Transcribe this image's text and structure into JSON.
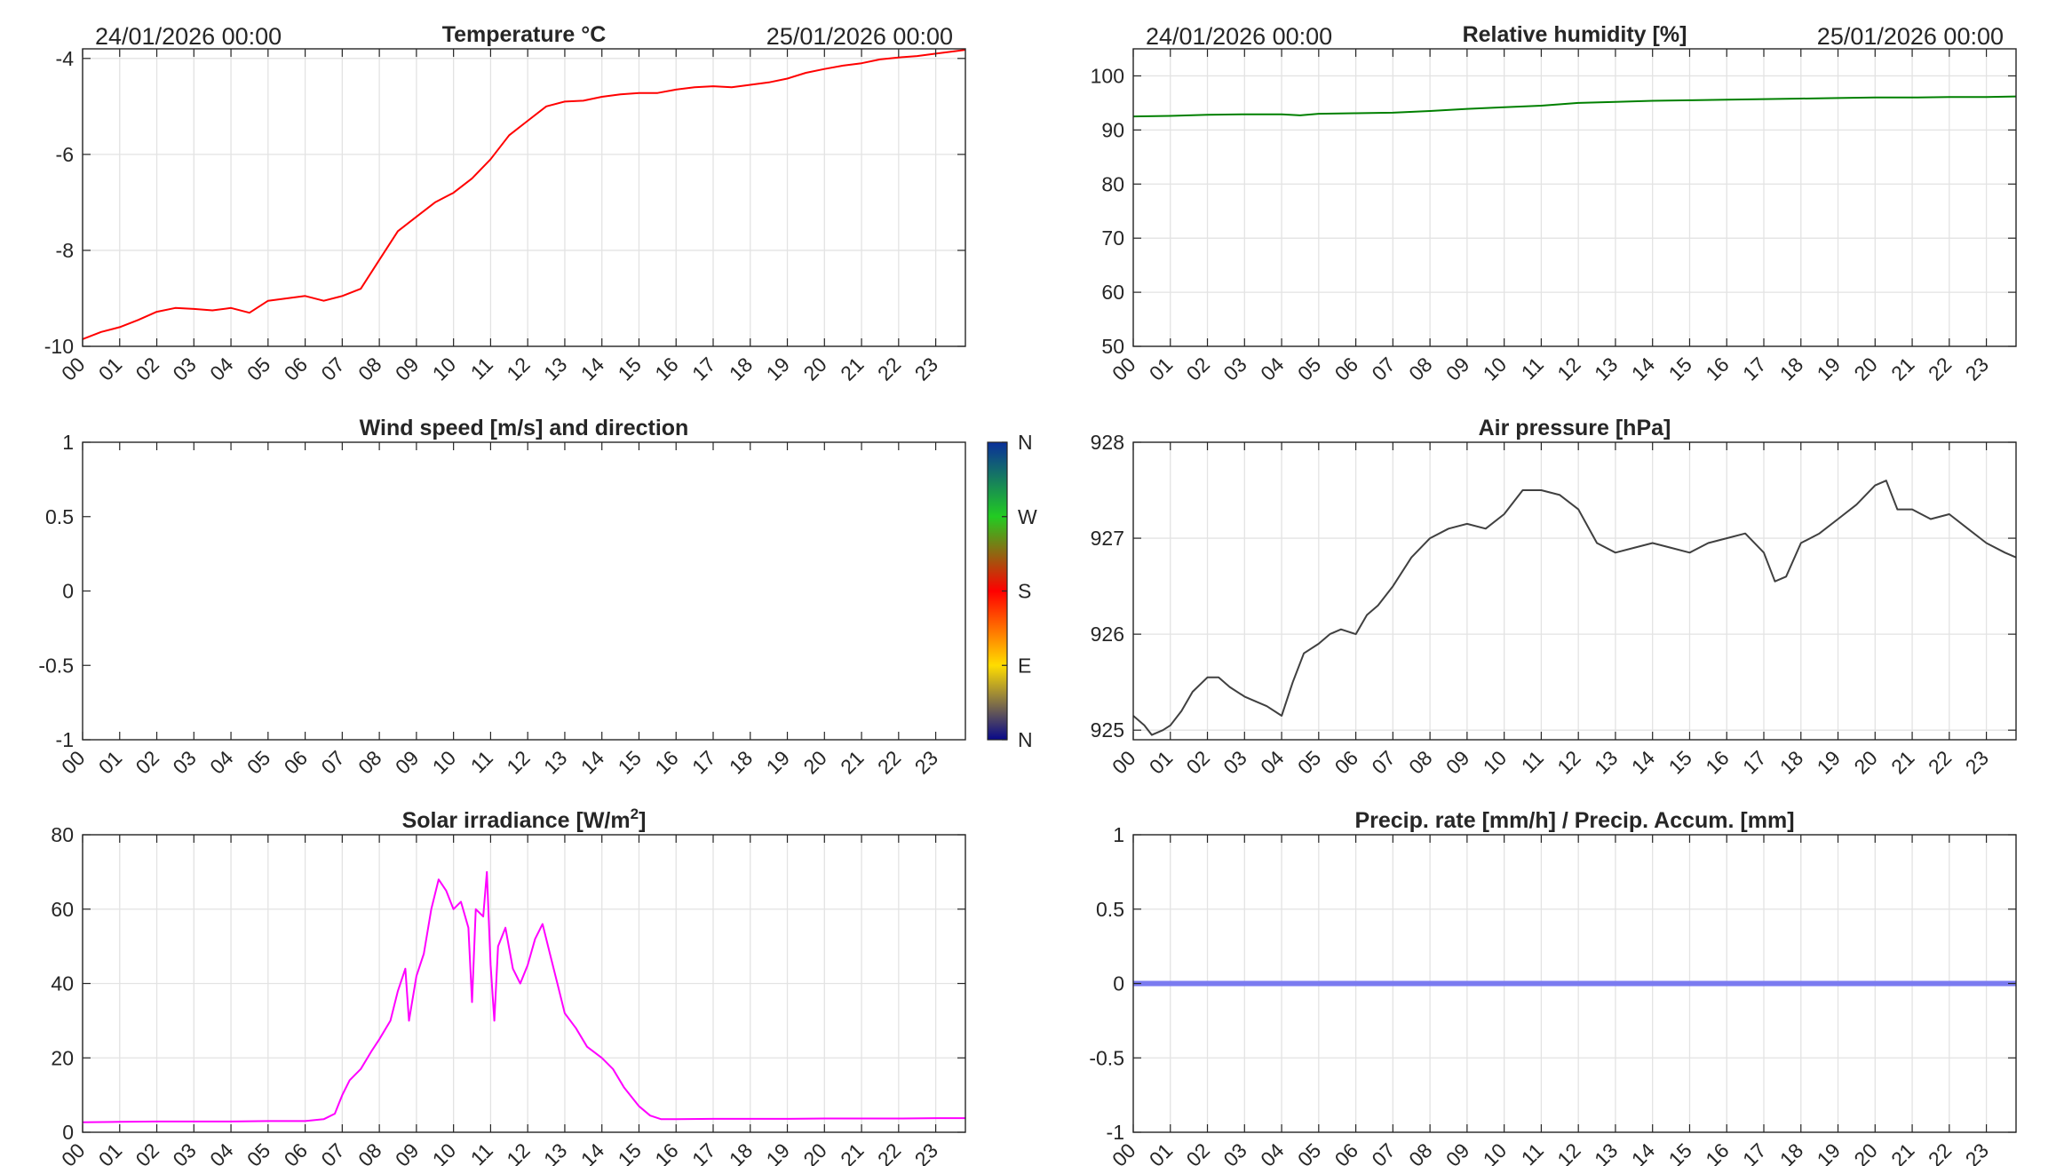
{
  "colors": {
    "temperature": "#ff0000",
    "humidity": "#008000",
    "pressure": "#404040",
    "solar": "#ff00ff",
    "precip": "#7b7bf0",
    "grid": "#e3e3e3",
    "axis": "#262626",
    "colorbar": [
      "#08088a",
      "#ffdd00",
      "#ff0000",
      "#22cc22",
      "#0a2f9a"
    ]
  },
  "chart_data": [
    {
      "id": "temperature",
      "type": "line",
      "title": "Temperature °C",
      "date_start": "24/01/2026 00:00",
      "date_end": "25/01/2026 00:00",
      "xlabel": "",
      "ylabel": "",
      "x_ticks": [
        "00",
        "01",
        "02",
        "03",
        "04",
        "05",
        "06",
        "07",
        "08",
        "09",
        "10",
        "11",
        "12",
        "13",
        "14",
        "15",
        "16",
        "17",
        "18",
        "19",
        "20",
        "21",
        "22",
        "23"
      ],
      "xlim": [
        0,
        23.8
      ],
      "ylim": [
        -10,
        -3.8
      ],
      "y_ticks": [
        -10,
        -8,
        -6,
        -4
      ],
      "y_tick_labels": [
        "-10",
        "-8",
        "-6",
        "-4"
      ],
      "grid": true,
      "series": [
        {
          "x": [
            0,
            0.5,
            1,
            1.5,
            2,
            2.5,
            3,
            3.5,
            4,
            4.5,
            5,
            5.5,
            6,
            6.5,
            7,
            7.5,
            8,
            8.5,
            9,
            9.5,
            10,
            10.5,
            11,
            11.5,
            12,
            12.5,
            13,
            13.5,
            14,
            14.5,
            15,
            15.5,
            16,
            16.5,
            17,
            17.5,
            18,
            18.5,
            19,
            19.5,
            20,
            20.5,
            21,
            21.5,
            22,
            22.5,
            23,
            23.5,
            23.8
          ],
          "y": [
            -9.85,
            -9.7,
            -9.6,
            -9.45,
            -9.28,
            -9.2,
            -9.22,
            -9.25,
            -9.2,
            -9.3,
            -9.05,
            -9.0,
            -8.95,
            -9.05,
            -8.95,
            -8.8,
            -8.2,
            -7.6,
            -7.3,
            -7.0,
            -6.8,
            -6.5,
            -6.1,
            -5.6,
            -5.3,
            -5.0,
            -4.9,
            -4.88,
            -4.8,
            -4.75,
            -4.72,
            -4.72,
            -4.65,
            -4.6,
            -4.58,
            -4.6,
            -4.55,
            -4.5,
            -4.42,
            -4.3,
            -4.22,
            -4.15,
            -4.1,
            -4.02,
            -3.98,
            -3.95,
            -3.9,
            -3.85,
            -3.82
          ]
        }
      ]
    },
    {
      "id": "humidity",
      "type": "line",
      "title": "Relative humidity [%]",
      "date_start": "24/01/2026 00:00",
      "date_end": "25/01/2026 00:00",
      "xlabel": "",
      "ylabel": "",
      "x_ticks": [
        "00",
        "01",
        "02",
        "03",
        "04",
        "05",
        "06",
        "07",
        "08",
        "09",
        "10",
        "11",
        "12",
        "13",
        "14",
        "15",
        "16",
        "17",
        "18",
        "19",
        "20",
        "21",
        "22",
        "23"
      ],
      "xlim": [
        0,
        23.8
      ],
      "ylim": [
        50,
        105
      ],
      "y_ticks": [
        50,
        60,
        70,
        80,
        90,
        100
      ],
      "y_tick_labels": [
        "50",
        "60",
        "70",
        "80",
        "90",
        "100"
      ],
      "grid": true,
      "series": [
        {
          "x": [
            0,
            1,
            2,
            3,
            4,
            4.5,
            5,
            6,
            7,
            8,
            9,
            10,
            11,
            12,
            13,
            14,
            15,
            16,
            17,
            18,
            19,
            20,
            21,
            22,
            23,
            23.8
          ],
          "y": [
            92.5,
            92.6,
            92.8,
            92.9,
            92.9,
            92.7,
            93.0,
            93.1,
            93.2,
            93.5,
            93.9,
            94.2,
            94.5,
            95.0,
            95.2,
            95.4,
            95.5,
            95.6,
            95.7,
            95.8,
            95.9,
            96.0,
            96.0,
            96.1,
            96.1,
            96.2
          ]
        }
      ]
    },
    {
      "id": "wind",
      "type": "scatter",
      "title": "Wind speed [m/s] and direction",
      "xlabel": "",
      "ylabel": "",
      "x_ticks": [
        "00",
        "01",
        "02",
        "03",
        "04",
        "05",
        "06",
        "07",
        "08",
        "09",
        "10",
        "11",
        "12",
        "13",
        "14",
        "15",
        "16",
        "17",
        "18",
        "19",
        "20",
        "21",
        "22",
        "23"
      ],
      "xlim": [
        0,
        23.8
      ],
      "ylim": [
        -1,
        1
      ],
      "y_ticks": [
        -1,
        -0.5,
        0,
        0.5,
        1
      ],
      "y_tick_labels": [
        "-1",
        "-0.5",
        "0",
        "0.5",
        "1"
      ],
      "grid": false,
      "series": [],
      "colorbar_labels": [
        "N",
        "W",
        "S",
        "E",
        "N"
      ]
    },
    {
      "id": "pressure",
      "type": "line",
      "title": "Air pressure [hPa]",
      "xlabel": "",
      "ylabel": "",
      "x_ticks": [
        "00",
        "01",
        "02",
        "03",
        "04",
        "05",
        "06",
        "07",
        "08",
        "09",
        "10",
        "11",
        "12",
        "13",
        "14",
        "15",
        "16",
        "17",
        "18",
        "19",
        "20",
        "21",
        "22",
        "23"
      ],
      "xlim": [
        0,
        23.8
      ],
      "ylim": [
        924.9,
        928
      ],
      "y_ticks": [
        925,
        926,
        927,
        928
      ],
      "y_tick_labels": [
        "925",
        "926",
        "927",
        "928"
      ],
      "grid": true,
      "series": [
        {
          "x": [
            0,
            0.3,
            0.5,
            0.8,
            1,
            1.3,
            1.6,
            2,
            2.3,
            2.6,
            3,
            3.3,
            3.6,
            4,
            4.3,
            4.6,
            5,
            5.3,
            5.6,
            6,
            6.3,
            6.6,
            7,
            7.5,
            8,
            8.5,
            9,
            9.5,
            10,
            10.5,
            11,
            11.5,
            12,
            12.5,
            13,
            13.5,
            14,
            14.5,
            15,
            15.5,
            16,
            16.5,
            17,
            17.3,
            17.6,
            18,
            18.5,
            19,
            19.5,
            20,
            20.3,
            20.6,
            21,
            21.5,
            22,
            22.5,
            23,
            23.5,
            23.8
          ],
          "y": [
            925.15,
            925.05,
            924.95,
            925.0,
            925.05,
            925.2,
            925.4,
            925.55,
            925.55,
            925.45,
            925.35,
            925.3,
            925.25,
            925.15,
            925.5,
            925.8,
            925.9,
            926.0,
            926.05,
            926.0,
            926.2,
            926.3,
            926.5,
            926.8,
            927.0,
            927.1,
            927.15,
            927.1,
            927.25,
            927.5,
            927.5,
            927.45,
            927.3,
            926.95,
            926.85,
            926.9,
            926.95,
            926.9,
            926.85,
            926.95,
            927.0,
            927.05,
            926.85,
            926.55,
            926.6,
            926.95,
            927.05,
            927.2,
            927.35,
            927.55,
            927.6,
            927.3,
            927.3,
            927.2,
            927.25,
            927.1,
            926.95,
            926.85,
            926.8
          ]
        }
      ]
    },
    {
      "id": "solar",
      "type": "line",
      "title": "Solar irradiance [W/m",
      "title_sup": "2",
      "title_end": "]",
      "xlabel": "",
      "ylabel": "",
      "x_ticks": [
        "00",
        "01",
        "02",
        "03",
        "04",
        "05",
        "06",
        "07",
        "08",
        "09",
        "10",
        "11",
        "12",
        "13",
        "14",
        "15",
        "16",
        "17",
        "18",
        "19",
        "20",
        "21",
        "22",
        "23"
      ],
      "xlim": [
        0,
        23.8
      ],
      "ylim": [
        0,
        80
      ],
      "y_ticks": [
        0,
        20,
        40,
        60,
        80
      ],
      "y_tick_labels": [
        "0",
        "20",
        "40",
        "60",
        "80"
      ],
      "grid": true,
      "series": [
        {
          "x": [
            0,
            1,
            2,
            3,
            4,
            5,
            6,
            6.5,
            6.8,
            7,
            7.2,
            7.5,
            7.8,
            8,
            8.3,
            8.5,
            8.7,
            8.8,
            9,
            9.2,
            9.4,
            9.6,
            9.8,
            10,
            10.2,
            10.4,
            10.5,
            10.6,
            10.8,
            10.9,
            11,
            11.1,
            11.2,
            11.4,
            11.6,
            11.8,
            12,
            12.2,
            12.4,
            12.6,
            12.8,
            13,
            13.3,
            13.6,
            14,
            14.3,
            14.6,
            15,
            15.3,
            15.6,
            16,
            17,
            18,
            19,
            20,
            21,
            22,
            23,
            23.8
          ],
          "y": [
            2.7,
            2.8,
            2.9,
            2.9,
            2.9,
            3.0,
            3.0,
            3.5,
            5,
            10,
            14,
            17,
            22,
            25,
            30,
            38,
            44,
            30,
            42,
            48,
            60,
            68,
            65,
            60,
            62,
            55,
            35,
            60,
            58,
            70,
            45,
            30,
            50,
            55,
            44,
            40,
            45,
            52,
            56,
            48,
            40,
            32,
            28,
            23,
            20,
            17,
            12,
            7,
            4.5,
            3.5,
            3.5,
            3.6,
            3.6,
            3.6,
            3.7,
            3.7,
            3.7,
            3.8,
            3.8
          ]
        }
      ]
    },
    {
      "id": "precip",
      "type": "line",
      "title": "Precip. rate [mm/h] / Precip. Accum. [mm]",
      "xlabel": "",
      "ylabel": "",
      "x_ticks": [
        "00",
        "01",
        "02",
        "03",
        "04",
        "05",
        "06",
        "07",
        "08",
        "09",
        "10",
        "11",
        "12",
        "13",
        "14",
        "15",
        "16",
        "17",
        "18",
        "19",
        "20",
        "21",
        "22",
        "23"
      ],
      "xlim": [
        0,
        23.8
      ],
      "ylim": [
        -1,
        1
      ],
      "y_ticks": [
        -1,
        -0.5,
        0,
        0.5,
        1
      ],
      "y_tick_labels": [
        "-1",
        "-0.5",
        "0",
        "0.5",
        "1"
      ],
      "grid": true,
      "series": [
        {
          "x": [
            0,
            23.8
          ],
          "y": [
            0,
            0
          ]
        }
      ]
    }
  ]
}
